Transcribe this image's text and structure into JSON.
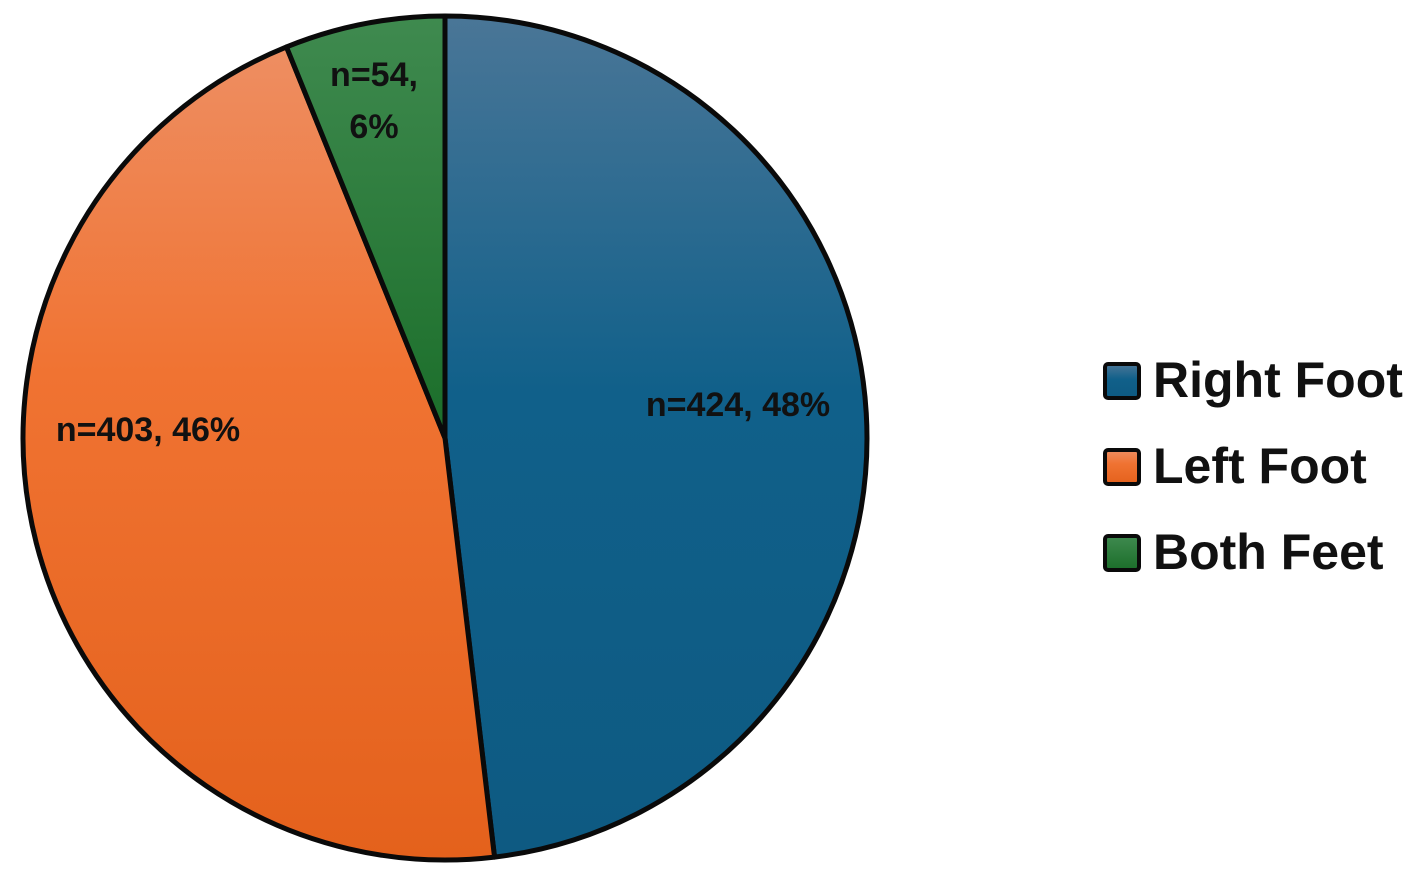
{
  "chart_data": {
    "type": "pie",
    "title": "",
    "legend_position": "right",
    "slices": [
      {
        "name": "Right Foot",
        "value": 424,
        "percent": 48,
        "color": "#1a5f86",
        "label_lines": [
          "n=424, 48%"
        ]
      },
      {
        "name": "Left Foot",
        "value": 403,
        "percent": 46,
        "color": "#ed6f2d",
        "label_lines": [
          "n=403, 46%"
        ]
      },
      {
        "name": "Both Feet",
        "value": 54,
        "percent": 6,
        "color": "#1d6e2d",
        "label_lines": [
          "n=54,",
          "6%"
        ]
      }
    ]
  }
}
